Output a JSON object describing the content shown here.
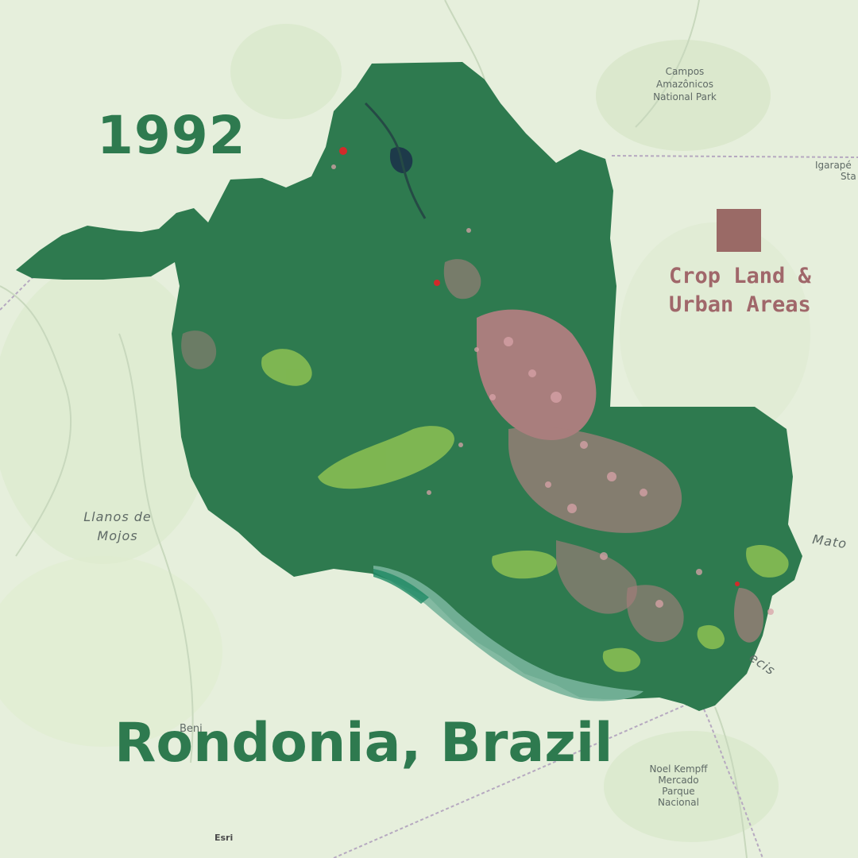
{
  "map": {
    "year": "1992",
    "title": "Rondonia, Brazil",
    "legend": {
      "label_line1": "Crop Land &",
      "label_line2": "Urban Areas",
      "color": "#9a6a66"
    },
    "colors": {
      "background": "#e6efdc",
      "forest": "#2e7a4f",
      "cropland": "#c07f86",
      "grassland": "#8cc152",
      "wetland": "#78b49b",
      "water": "#1d3a4a",
      "urban": "#d22a2a"
    },
    "basemap_labels": {
      "park_line1": "Campos",
      "park_line2": "Amazônicos",
      "park_line3": "National Park",
      "igarape": "Igarapé",
      "igarape_sub": "Sta",
      "llanos_line1": "Llanos de",
      "llanos_line2": "Mojos",
      "mato": "Mato",
      "cecis": "ecis",
      "beni": "Beni",
      "noel_line1": "Noel Kempff",
      "noel_line2": "Mercado",
      "noel_line3": "Parque",
      "noel_line4": "Nacional"
    },
    "attribution": "Esri"
  }
}
